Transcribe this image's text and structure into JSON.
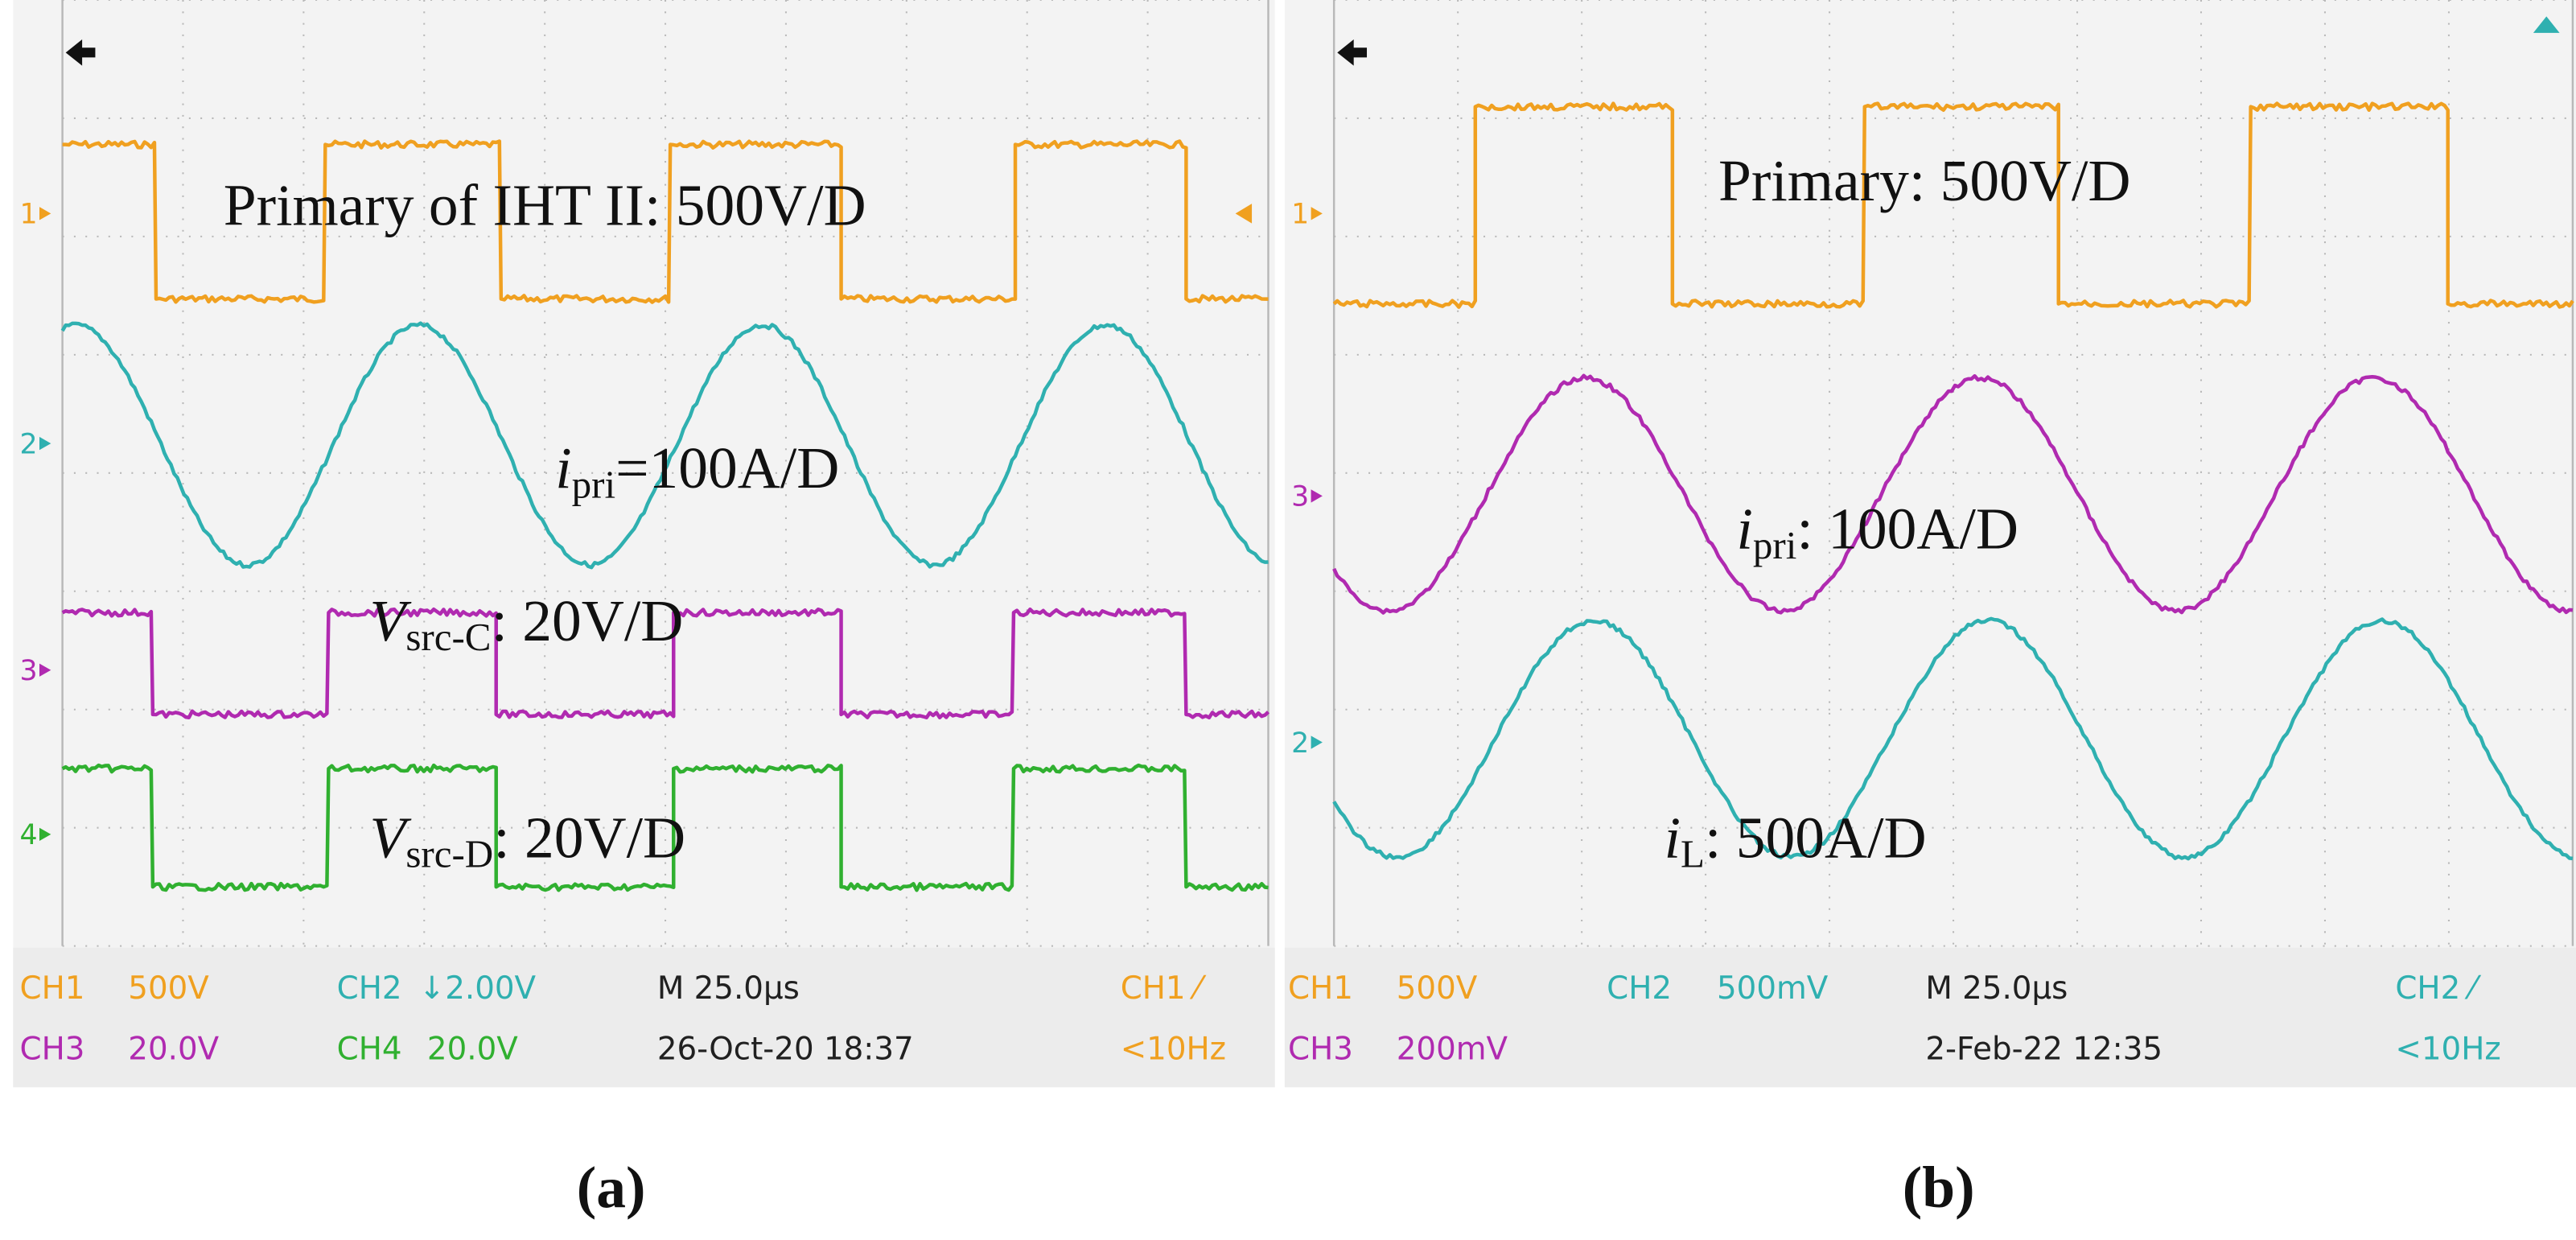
{
  "panels": [
    {
      "caption": "(a)",
      "annotations": [
        {
          "text": "Primary of IHT II: 500V/D"
        },
        {
          "symbol": "i",
          "subscript": "pri",
          "text": "=100A/D"
        },
        {
          "symbol": "V",
          "subscript": "src-C",
          "text": ": 20V/D"
        },
        {
          "symbol": "V",
          "subscript": "src-D",
          "text": ": 20V/D"
        }
      ],
      "channel_markers": [
        {
          "label": "1",
          "color": "#f0a020"
        },
        {
          "label": "2",
          "color": "#2fb0b0"
        },
        {
          "label": "3",
          "color": "#b02ab0"
        },
        {
          "label": "4",
          "color": "#30b030"
        }
      ],
      "trace_colors": [
        "#f0a020",
        "#2fb0b0",
        "#b02ab0",
        "#30b030"
      ],
      "status": [
        [
          {
            "text": "CH1",
            "color": "#f0a020"
          },
          {
            "text": "500V",
            "color": "#f0a020"
          },
          {
            "text": "CH2",
            "color": "#2fb0b0"
          },
          {
            "text": "↓2.00V",
            "color": "#2fb0b0"
          },
          {
            "text": "M 25.0µs",
            "color": "#202020"
          },
          {
            "text": "CH1 ⁄",
            "color": "#f0a020"
          }
        ],
        [
          {
            "text": "CH3",
            "color": "#b02ab0"
          },
          {
            "text": "20.0V",
            "color": "#b02ab0"
          },
          {
            "text": "CH4",
            "color": "#30b030"
          },
          {
            "text": "20.0V",
            "color": "#30b030"
          },
          {
            "text": "26-Oct-20 18:37",
            "color": "#202020"
          },
          {
            "text": "<10Hz",
            "color": "#f0a020"
          }
        ]
      ]
    },
    {
      "caption": "(b)",
      "annotations": [
        {
          "text": "Primary: 500V/D"
        },
        {
          "symbol": "i",
          "subscript": "pri",
          "text": ": 100A/D"
        },
        {
          "symbol": "i",
          "subscript": "L",
          "text": ": 500A/D"
        }
      ],
      "channel_markers": [
        {
          "label": "1",
          "color": "#f0a020"
        },
        {
          "label": "3",
          "color": "#b02ab0"
        },
        {
          "label": "2",
          "color": "#2fb0b0"
        }
      ],
      "trace_colors": [
        "#f0a020",
        "#b02ab0",
        "#2fb0b0"
      ],
      "status": [
        [
          {
            "text": "CH1",
            "color": "#f0a020"
          },
          {
            "text": "500V",
            "color": "#f0a020"
          },
          {
            "text": "CH2",
            "color": "#2fb0b0"
          },
          {
            "text": "500mV",
            "color": "#2fb0b0"
          },
          {
            "text": "M 25.0µs",
            "color": "#202020"
          },
          {
            "text": "CH2 ⁄",
            "color": "#2fb0b0"
          }
        ],
        [
          {
            "text": "CH3",
            "color": "#b02ab0"
          },
          {
            "text": "200mV",
            "color": "#b02ab0"
          },
          {
            "text": "2-Feb-22 12:35",
            "color": "#202020"
          },
          {
            "text": "<10Hz",
            "color": "#2fb0b0"
          }
        ]
      ]
    }
  ]
}
